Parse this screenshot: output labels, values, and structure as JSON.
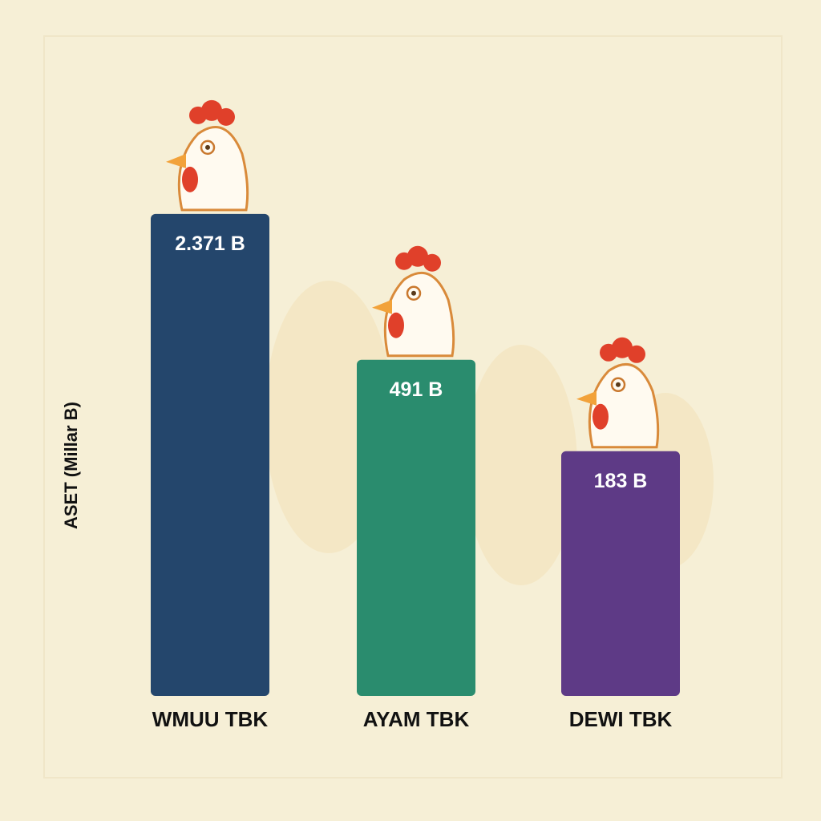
{
  "chart_data": {
    "type": "bar",
    "title": "",
    "xlabel": "",
    "ylabel": "ASET (Millar B)",
    "categories": [
      "WMUU TBK",
      "AYAM TBK",
      "DEWI TBK"
    ],
    "values": [
      2371,
      491,
      183
    ],
    "data_labels": [
      "2.371 B",
      "491 B",
      "183 B"
    ],
    "colors": [
      "#24466c",
      "#2a8c6e",
      "#5e3a86"
    ],
    "grid": false,
    "legend": "none",
    "decoration": "chicken-icon above each bar"
  }
}
